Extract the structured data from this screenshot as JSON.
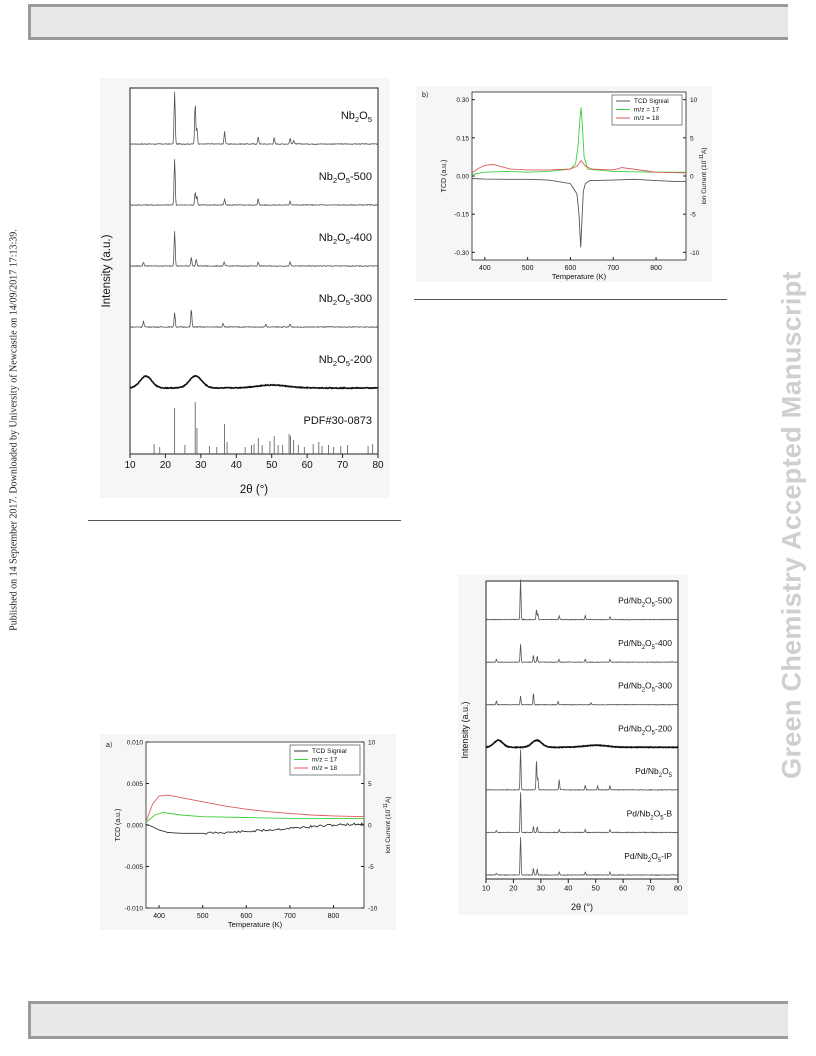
{
  "header_bar": "",
  "footer_bar": "",
  "sidebar_left": "Published on 14 September 2017. Downloaded by University of Newcastle on 14/09/2017 17:13:39.",
  "sidebar_right": "Green Chemistry Accepted Manuscript",
  "chart_data": [
    {
      "type": "line",
      "panel": "xrd-nb2o5",
      "xlabel": "2θ (°)",
      "ylabel": "Intensity (a.u.)",
      "xlim": [
        10,
        80
      ],
      "x_ticks": [
        "10",
        "20",
        "30",
        "40",
        "50",
        "60",
        "70",
        "80"
      ],
      "series": [
        {
          "name": "Nb₂O₅",
          "peaks": [
            {
              "x": 22.6,
              "h": 52
            },
            {
              "x": 28.4,
              "h": 40
            },
            {
              "x": 28.9,
              "h": 16
            },
            {
              "x": 36.7,
              "h": 13
            },
            {
              "x": 46.2,
              "h": 7
            },
            {
              "x": 50.7,
              "h": 6
            },
            {
              "x": 55.2,
              "h": 6
            },
            {
              "x": 56.2,
              "h": 4
            }
          ]
        },
        {
          "name": "Nb₂O₅-500",
          "peaks": [
            {
              "x": 22.6,
              "h": 46
            },
            {
              "x": 28.4,
              "h": 13
            },
            {
              "x": 28.9,
              "h": 9
            },
            {
              "x": 36.7,
              "h": 6
            },
            {
              "x": 46.2,
              "h": 6
            },
            {
              "x": 55.2,
              "h": 4
            }
          ]
        },
        {
          "name": "Nb₂O₅-400",
          "peaks": [
            {
              "x": 13.8,
              "h": 4
            },
            {
              "x": 22.6,
              "h": 35
            },
            {
              "x": 27.3,
              "h": 9
            },
            {
              "x": 28.7,
              "h": 7
            },
            {
              "x": 36.6,
              "h": 4
            },
            {
              "x": 46.2,
              "h": 4
            },
            {
              "x": 55.2,
              "h": 4
            }
          ]
        },
        {
          "name": "Nb₂O₅-300",
          "peaks": [
            {
              "x": 13.8,
              "h": 6
            },
            {
              "x": 22.6,
              "h": 14
            },
            {
              "x": 27.3,
              "h": 18
            },
            {
              "x": 36.3,
              "h": 4
            },
            {
              "x": 48.3,
              "h": 3
            },
            {
              "x": 55.2,
              "h": 3
            }
          ]
        },
        {
          "name": "Nb₂O₅-200",
          "broad": [
            {
              "x": 14.5,
              "h": 12,
              "w": 2.3
            },
            {
              "x": 28.5,
              "h": 12,
              "w": 2.5
            },
            {
              "x": 50,
              "h": 3,
              "w": 6
            }
          ]
        },
        {
          "name": "PDF#30-0873",
          "sticks": [
            {
              "x": 16.8,
              "h": 10
            },
            {
              "x": 18.4,
              "h": 7
            },
            {
              "x": 22.6,
              "h": 46
            },
            {
              "x": 25.5,
              "h": 9
            },
            {
              "x": 28.4,
              "h": 52
            },
            {
              "x": 28.9,
              "h": 26
            },
            {
              "x": 32.4,
              "h": 8
            },
            {
              "x": 34.5,
              "h": 7
            },
            {
              "x": 36.7,
              "h": 30
            },
            {
              "x": 37.4,
              "h": 12
            },
            {
              "x": 42.5,
              "h": 7
            },
            {
              "x": 44.3,
              "h": 9
            },
            {
              "x": 45.0,
              "h": 10
            },
            {
              "x": 46.2,
              "h": 16
            },
            {
              "x": 47.3,
              "h": 9
            },
            {
              "x": 49.5,
              "h": 13
            },
            {
              "x": 50.7,
              "h": 18
            },
            {
              "x": 51.8,
              "h": 9
            },
            {
              "x": 53.1,
              "h": 9
            },
            {
              "x": 54.9,
              "h": 20
            },
            {
              "x": 55.3,
              "h": 18
            },
            {
              "x": 56.2,
              "h": 14
            },
            {
              "x": 57.5,
              "h": 9
            },
            {
              "x": 59.2,
              "h": 7
            },
            {
              "x": 61.7,
              "h": 10
            },
            {
              "x": 63.3,
              "h": 12
            },
            {
              "x": 64.2,
              "h": 8
            },
            {
              "x": 66.0,
              "h": 9
            },
            {
              "x": 67.5,
              "h": 7
            },
            {
              "x": 69.5,
              "h": 8
            },
            {
              "x": 71.4,
              "h": 9
            },
            {
              "x": 77.2,
              "h": 8
            },
            {
              "x": 78.5,
              "h": 10
            }
          ]
        }
      ]
    },
    {
      "type": "line",
      "panel": "b",
      "panel_label": "b）",
      "xlabel": "Temperature (K)",
      "ylabel": "TCD (a.u.)",
      "ylabel_right": "Ion Current (10⁻¹¹A)",
      "xlim": [
        370,
        870
      ],
      "ylim": [
        -0.33,
        0.33
      ],
      "ylim_right": [
        -11,
        11
      ],
      "x_ticks": [
        "400",
        "500",
        "600",
        "700",
        "800"
      ],
      "y_ticks": [
        "0.30",
        "0.15",
        "0.00",
        "-0.15",
        "-0.30"
      ],
      "y_ticks_right": [
        "10",
        "5",
        "0",
        "-5",
        "-10"
      ],
      "legend": "top-right",
      "series": [
        {
          "name": "TCD Signial",
          "color": "#555555",
          "x": [
            370,
            400,
            450,
            500,
            550,
            600,
            615,
            620,
            624,
            627,
            630,
            635,
            645,
            700,
            750,
            800,
            850,
            870
          ],
          "y": [
            -0.01,
            -0.012,
            -0.013,
            -0.013,
            -0.016,
            -0.03,
            -0.07,
            -0.15,
            -0.28,
            -0.17,
            -0.06,
            -0.03,
            -0.018,
            -0.016,
            -0.013,
            -0.018,
            -0.022,
            -0.022
          ]
        },
        {
          "name": "m/z = 17",
          "color": "#3ecf3e",
          "x": [
            370,
            400,
            450,
            500,
            550,
            600,
            612,
            618,
            622,
            625,
            628,
            632,
            640,
            700,
            800,
            870
          ],
          "y": [
            0.2,
            0.5,
            0.6,
            0.5,
            0.6,
            0.9,
            1.6,
            4.0,
            7.5,
            9.0,
            6.5,
            2.5,
            0.9,
            0.6,
            0.5,
            0.5
          ]
        },
        {
          "name": "m/z = 18",
          "color": "#e05a5a",
          "x": [
            370,
            385,
            400,
            420,
            440,
            460,
            500,
            550,
            600,
            615,
            625,
            635,
            650,
            700,
            720,
            800,
            870
          ],
          "y": [
            0.4,
            1.0,
            1.4,
            1.5,
            1.2,
            0.9,
            0.8,
            0.8,
            0.9,
            1.3,
            2.0,
            1.3,
            0.9,
            0.8,
            1.1,
            0.5,
            0.4
          ]
        }
      ]
    },
    {
      "type": "line",
      "panel": "a",
      "panel_label": "a）",
      "xlabel": "Temperature (K)",
      "ylabel": "TCD (a.u.)",
      "ylabel_right": "Ion Current (10⁻¹¹A)",
      "xlim": [
        370,
        870
      ],
      "ylim": [
        -0.01,
        0.01
      ],
      "ylim_right": [
        -10,
        10
      ],
      "x_ticks": [
        "400",
        "500",
        "600",
        "700",
        "800"
      ],
      "y_ticks": [
        "0.010",
        "0.005",
        "0.000",
        "-0.005",
        "-0.010"
      ],
      "y_ticks_right": [
        "10",
        "5",
        "0",
        "-5",
        "-10"
      ],
      "legend": "top-right",
      "series": [
        {
          "name": "TCD Signial",
          "color": "#333333",
          "x": [
            370,
            385,
            400,
            420,
            450,
            500,
            550,
            600,
            650,
            700,
            750,
            800,
            850,
            870
          ],
          "y": [
            0.0001,
            -0.0002,
            -0.0006,
            -0.0009,
            -0.001,
            -0.001,
            -0.0009,
            -0.0008,
            -0.0006,
            -0.0004,
            -0.0002,
            0.0,
            0.0001,
            0.0001
          ]
        },
        {
          "name": "m/z = 17",
          "color": "#3ecf3e",
          "x": [
            370,
            390,
            410,
            450,
            500,
            600,
            700,
            800,
            870
          ],
          "y": [
            0.3,
            1.2,
            1.5,
            1.2,
            1.0,
            0.9,
            0.8,
            0.8,
            0.8
          ]
        },
        {
          "name": "m/z = 18",
          "color": "#e05a5a",
          "x": [
            370,
            385,
            400,
            420,
            450,
            500,
            550,
            600,
            650,
            700,
            750,
            800,
            870
          ],
          "y": [
            0.4,
            2.5,
            3.5,
            3.6,
            3.3,
            2.8,
            2.3,
            1.9,
            1.6,
            1.4,
            1.2,
            1.1,
            1.0
          ]
        }
      ]
    },
    {
      "type": "line",
      "panel": "xrd-pd",
      "xlabel": "2θ (°)",
      "ylabel": "Intensity (a.u.)",
      "xlim": [
        10,
        80
      ],
      "x_ticks": [
        "10",
        "20",
        "30",
        "40",
        "50",
        "60",
        "70",
        "80"
      ],
      "series": [
        {
          "name": "Pd/Nb₂O₅-500",
          "peaks": [
            {
              "x": 22.6,
              "h": 40
            },
            {
              "x": 28.4,
              "h": 10
            },
            {
              "x": 28.9,
              "h": 6
            },
            {
              "x": 36.7,
              "h": 4
            },
            {
              "x": 46.2,
              "h": 4
            },
            {
              "x": 55.2,
              "h": 3
            }
          ]
        },
        {
          "name": "Pd/Nb₂O₅-400",
          "peaks": [
            {
              "x": 13.8,
              "h": 3
            },
            {
              "x": 22.6,
              "h": 18
            },
            {
              "x": 27.3,
              "h": 7
            },
            {
              "x": 28.7,
              "h": 6
            },
            {
              "x": 36.6,
              "h": 3
            },
            {
              "x": 46.2,
              "h": 3
            },
            {
              "x": 55.2,
              "h": 3
            }
          ]
        },
        {
          "name": "Pd/Nb₂O₅-300",
          "peaks": [
            {
              "x": 13.8,
              "h": 4
            },
            {
              "x": 22.6,
              "h": 9
            },
            {
              "x": 27.3,
              "h": 12
            },
            {
              "x": 36.3,
              "h": 3
            },
            {
              "x": 48.3,
              "h": 2
            }
          ]
        },
        {
          "name": "Pd/Nb₂O₅-200",
          "broad": [
            {
              "x": 14.5,
              "h": 7,
              "w": 2.3
            },
            {
              "x": 28.5,
              "h": 7,
              "w": 2.5
            },
            {
              "x": 50,
              "h": 2,
              "w": 6
            }
          ]
        },
        {
          "name": "Pd/Nb₂O₅",
          "peaks": [
            {
              "x": 22.6,
              "h": 40
            },
            {
              "x": 28.4,
              "h": 30
            },
            {
              "x": 28.9,
              "h": 12
            },
            {
              "x": 36.7,
              "h": 10
            },
            {
              "x": 46.2,
              "h": 5
            },
            {
              "x": 50.7,
              "h": 4
            },
            {
              "x": 55.2,
              "h": 4
            }
          ]
        },
        {
          "name": "Pd/Nb₂O₅-B",
          "peaks": [
            {
              "x": 13.8,
              "h": 2
            },
            {
              "x": 22.6,
              "h": 40
            },
            {
              "x": 27.3,
              "h": 6
            },
            {
              "x": 28.7,
              "h": 6
            },
            {
              "x": 36.7,
              "h": 3
            },
            {
              "x": 46.2,
              "h": 3
            },
            {
              "x": 55.2,
              "h": 3
            }
          ]
        },
        {
          "name": "Pd/Nb₂O₅-IP",
          "peaks": [
            {
              "x": 13.8,
              "h": 2
            },
            {
              "x": 22.6,
              "h": 38
            },
            {
              "x": 27.3,
              "h": 7
            },
            {
              "x": 28.7,
              "h": 6
            },
            {
              "x": 36.7,
              "h": 3
            },
            {
              "x": 46.2,
              "h": 3
            },
            {
              "x": 55.2,
              "h": 3
            }
          ]
        }
      ]
    }
  ]
}
